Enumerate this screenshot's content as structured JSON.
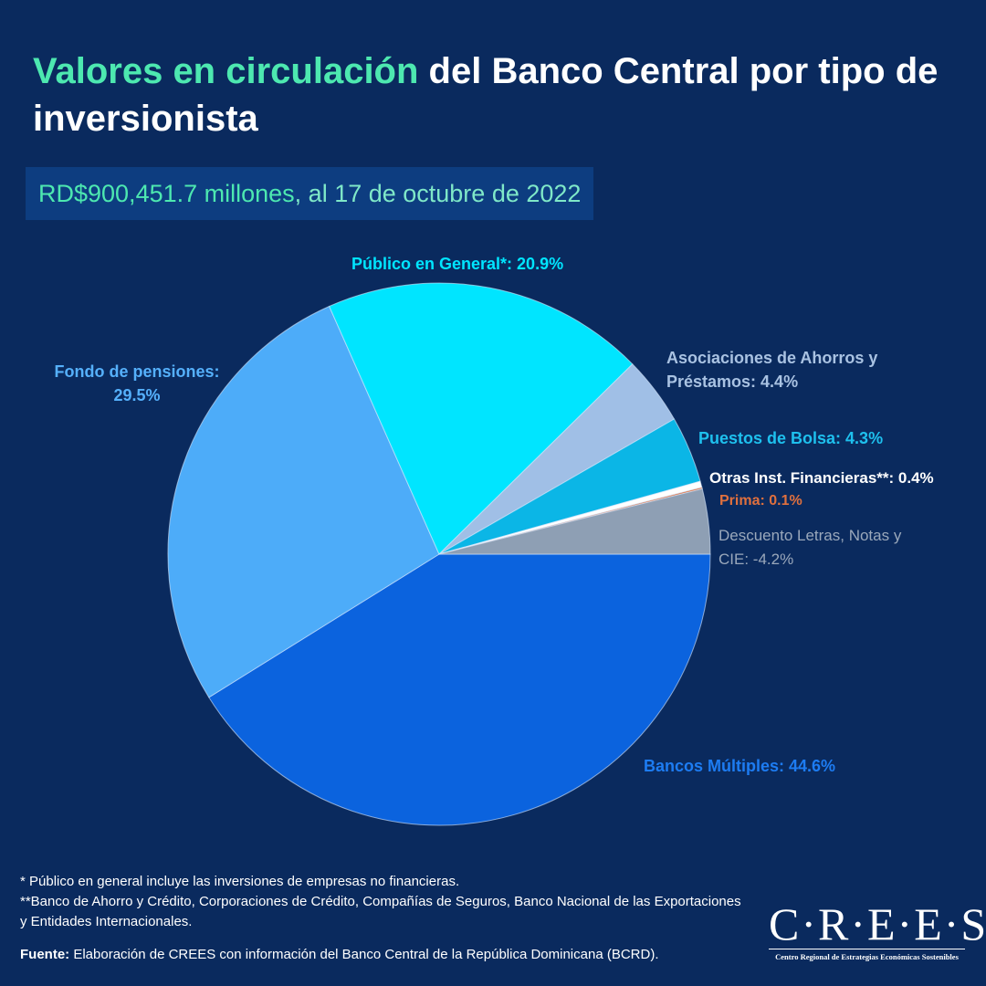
{
  "chart_data": {
    "type": "pie",
    "title": {
      "highlight": "Valores en circulación",
      "rest": " del Banco Central por tipo de inversionista"
    },
    "subtitle": {
      "highlight": "RD$900,451.7 millones",
      "rest": ", al 17 de octubre de 2022"
    },
    "values": [
      44.6,
      29.5,
      20.9,
      4.4,
      4.3,
      0.4,
      0.1,
      -4.2
    ],
    "value_labels": [
      "Bancos Múltiples: 44.6%",
      "Fondo de pensiones: 29.5%",
      "Público en General*: 20.9%",
      "Asociaciones de Ahorros y Préstamos: 4.4%",
      "Puestos de Bolsa: 4.3%",
      "Otras Inst. Financieras**: 0.4%",
      "Prima: 0.1%",
      "Descuento Letras, Notas y CIE: -4.2%"
    ],
    "colors": [
      "#0b63de",
      "#4dacf9",
      "#00e5ff",
      "#a0bfe6",
      "#0bb6e6",
      "#ffffff",
      "#e0703e",
      "#8e9fb4"
    ],
    "label_colors": [
      "#1d7cf2",
      "#55b0fb",
      "#00e5ff",
      "#a9c2e2",
      "#1ec0ee",
      "#ffffff",
      "#e0703e",
      "#9aa8bb"
    ]
  },
  "notes": [
    "* Público en general incluye las inversiones de empresas no financieras.",
    "**Banco de Ahorro y Crédito, Corporaciones de Crédito, Compañías de Seguros, Banco Nacional de las Exportaciones y Entidades Internacionales."
  ],
  "source": {
    "label": "Fuente:",
    "text": " Elaboración de CREES con información del Banco Central de la República Dominicana (BCRD)."
  },
  "logo": {
    "mark": "C·R·E·E·S",
    "name": "Centro Regional de Estrategias Económicas Sostenibles"
  }
}
